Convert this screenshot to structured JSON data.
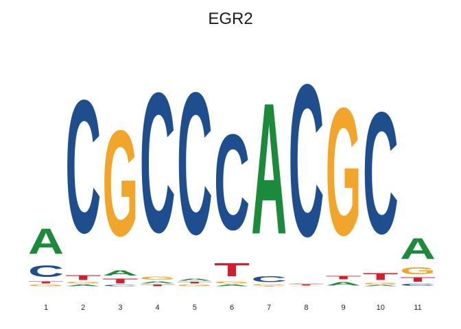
{
  "chart_data": {
    "type": "sequence-logo",
    "title": "EGR2",
    "positions": [
      "1",
      "2",
      "3",
      "4",
      "5",
      "6",
      "7",
      "8",
      "9",
      "10",
      "11"
    ],
    "colors": {
      "A": "#1b8a3a",
      "C": "#1f4e8f",
      "G": "#f2a52b",
      "T": "#d0202e"
    },
    "stacks": [
      [
        {
          "base": "G",
          "bits": 0.03
        },
        {
          "base": "T",
          "bits": 0.04
        },
        {
          "base": "C",
          "bits": 0.22
        },
        {
          "base": "A",
          "bits": 0.48
        }
      ],
      [
        {
          "base": "A",
          "bits": 0.03
        },
        {
          "base": "G",
          "bits": 0.03
        },
        {
          "base": "T",
          "bits": 0.09
        },
        {
          "base": "C",
          "bits": 2.5
        }
      ],
      [
        {
          "base": "C",
          "bits": 0.02
        },
        {
          "base": "T",
          "bits": 0.09
        },
        {
          "base": "A",
          "bits": 0.1
        },
        {
          "base": "G",
          "bits": 1.99
        }
      ],
      [
        {
          "base": "T",
          "bits": 0.03
        },
        {
          "base": "A",
          "bits": 0.04
        },
        {
          "base": "G",
          "bits": 0.06
        },
        {
          "base": "C",
          "bits": 2.63
        }
      ],
      [
        {
          "base": "G",
          "bits": 0.03
        },
        {
          "base": "T",
          "bits": 0.03
        },
        {
          "base": "A",
          "bits": 0.04
        },
        {
          "base": "C",
          "bits": 2.67
        }
      ],
      [
        {
          "base": "A",
          "bits": 0.03
        },
        {
          "base": "G",
          "bits": 0.04
        },
        {
          "base": "T",
          "bits": 0.25
        },
        {
          "base": "C",
          "bits": 1.8
        }
      ],
      [
        {
          "base": "T",
          "bits": 0.01
        },
        {
          "base": "G",
          "bits": 0.02
        },
        {
          "base": "C",
          "bits": 0.11
        },
        {
          "base": "A",
          "bits": 2.47
        }
      ],
      [
        {
          "base": "G",
          "bits": 0.01
        },
        {
          "base": "T",
          "bits": 0.02
        },
        {
          "base": "A",
          "bits": 0.01
        },
        {
          "base": "C",
          "bits": 2.86
        }
      ],
      [
        {
          "base": "A",
          "bits": 0.07
        },
        {
          "base": "T",
          "bits": 0.07
        },
        {
          "base": "G",
          "bits": 2.4
        }
      ],
      [
        {
          "base": "A",
          "bits": 0.02
        },
        {
          "base": "G",
          "bits": 0.03
        },
        {
          "base": "T",
          "bits": 0.13
        },
        {
          "base": "C",
          "bits": 2.29
        }
      ],
      [
        {
          "base": "C",
          "bits": 0.04
        },
        {
          "base": "T",
          "bits": 0.08
        },
        {
          "base": "G",
          "bits": 0.13
        },
        {
          "base": "A",
          "bits": 0.39
        }
      ]
    ],
    "xlabel": "",
    "ylabel": "",
    "grid": false,
    "legend": "none"
  }
}
